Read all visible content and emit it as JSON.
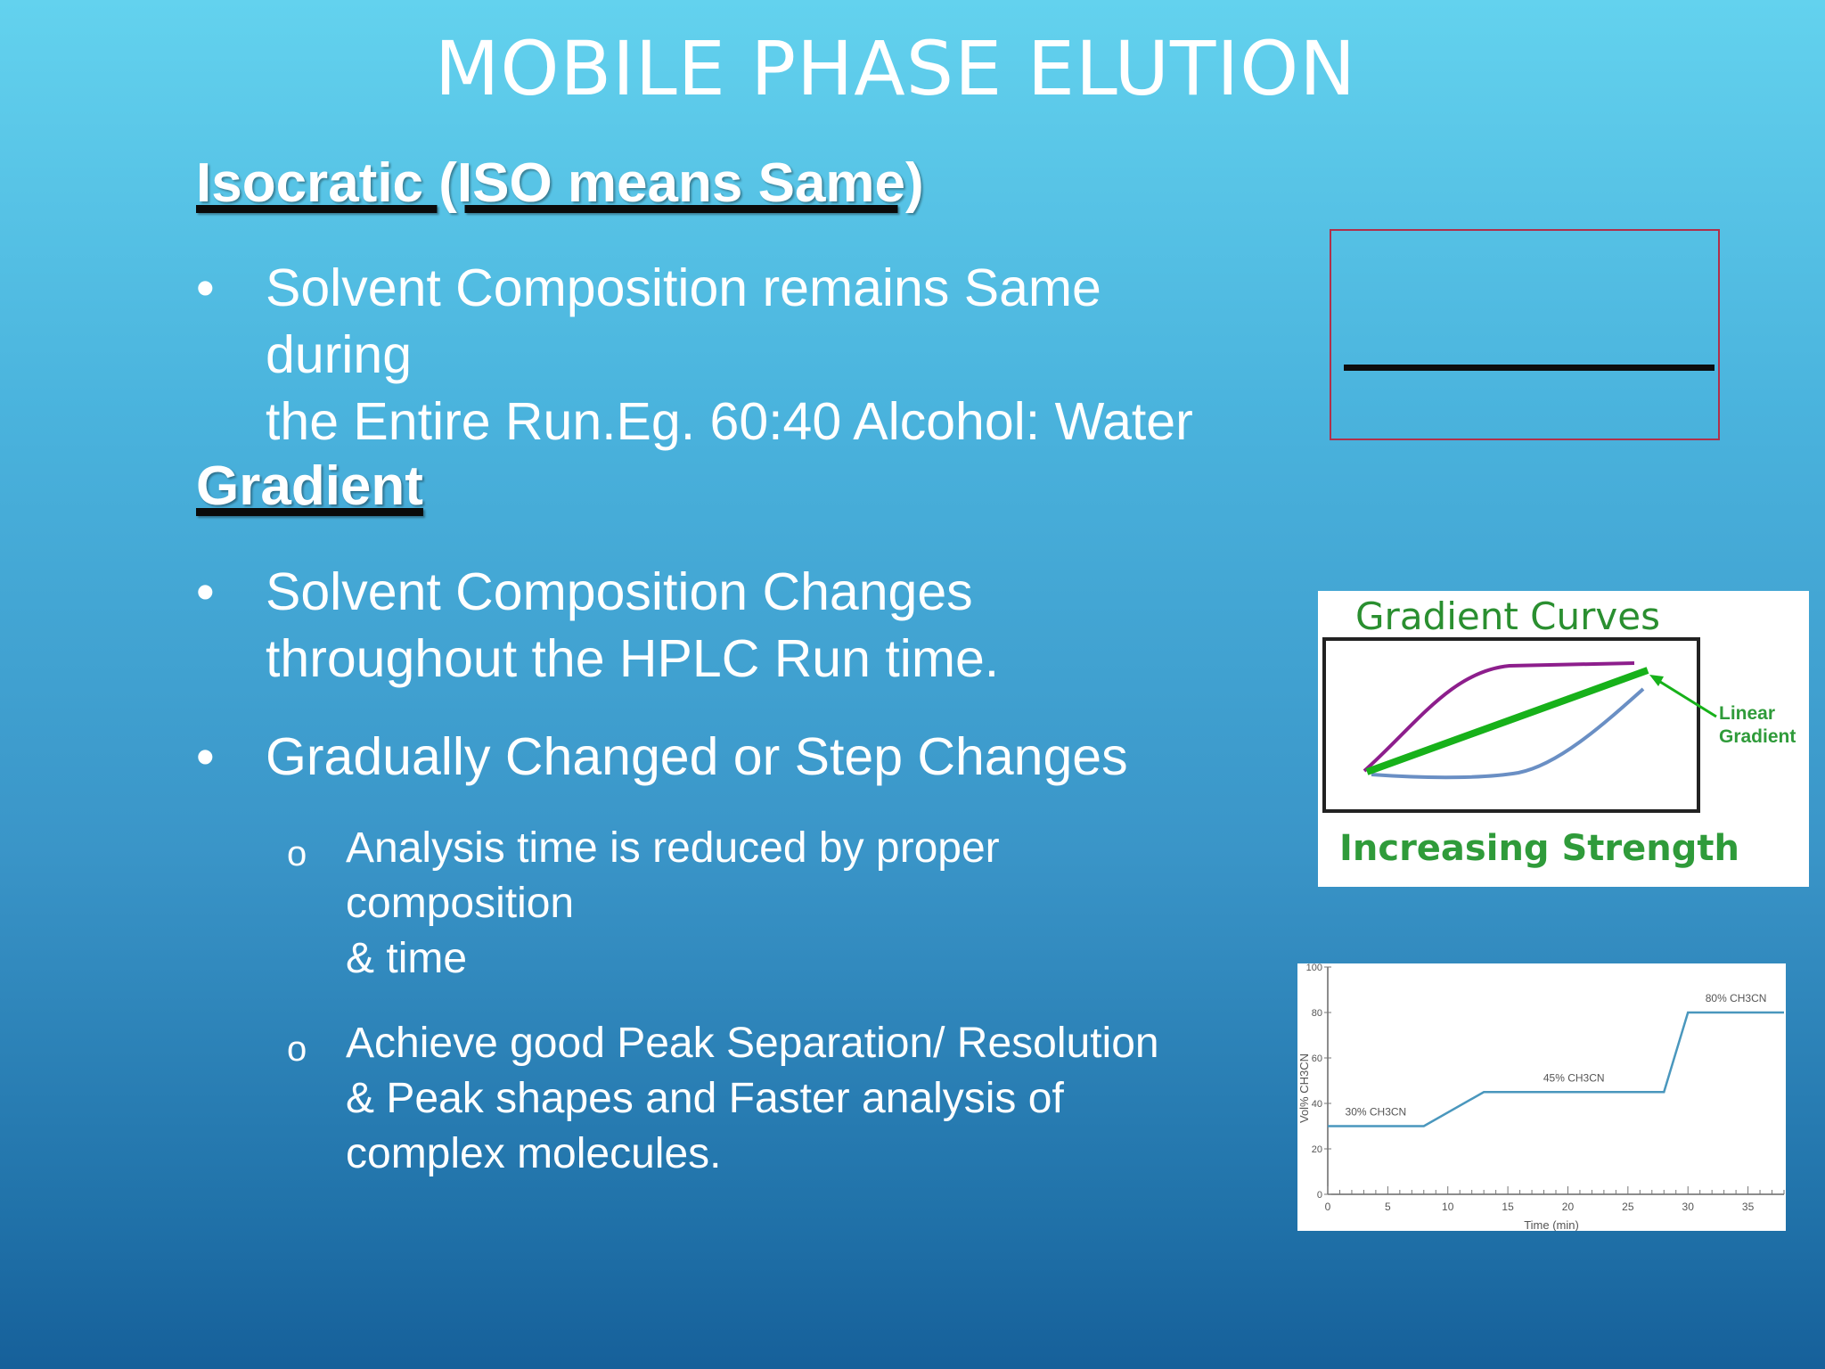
{
  "slide": {
    "title": "MOBILE PHASE ELUTION",
    "isocratic_heading": "Isocratic (ISO means Same)",
    "isocratic_bullet": {
      "mark": "•",
      "lines": [
        "Solvent Composition remains Same",
        "during",
        "the Entire Run.Eg. 60:40 Alcohol: Water"
      ]
    },
    "gradient_heading": "Gradient",
    "gradient_bullets": [
      {
        "mark": "•",
        "lines": [
          "Solvent Composition Changes",
          "throughout  the HPLC Run time."
        ]
      },
      {
        "mark": "•",
        "lines": [
          "Gradually Changed or Step Changes"
        ]
      }
    ],
    "sub_bullets": [
      {
        "mark": "o",
        "lines": [
          "Analysis time is reduced by proper",
          "composition",
          "& time"
        ]
      },
      {
        "mark": "o",
        "lines": [
          "Achieve good Peak Separation/ Resolution",
          "&  Peak shapes and Faster analysis of",
          "complex  molecules."
        ]
      }
    ]
  },
  "gradient_figure": {
    "title": "Gradient Curves",
    "arrow_label_line1": "Linear",
    "arrow_label_line2": "Gradient",
    "bottom_label": "Increasing Strength",
    "colors": {
      "title": "#2a8f30",
      "linear": "#17b11a",
      "convex": "#8d1e8c",
      "concave": "#6a8fc4",
      "label": "#2f9b3a"
    }
  },
  "step_figure": {
    "ylabel": "Vol% CH3CN",
    "xlabel": "Time (min)",
    "y_ticks": [
      "0",
      "20",
      "40",
      "60",
      "80",
      "100"
    ],
    "x_ticks": [
      "0",
      "5",
      "10",
      "15",
      "20",
      "25",
      "30",
      "35"
    ],
    "step_labels": [
      "30% CH3CN",
      "45% CH3CN",
      "80% CH3CN"
    ],
    "color": "#4a97bd"
  },
  "chart_data": {
    "type": "line",
    "title": "",
    "xlabel": "Time (min)",
    "ylabel": "Vol% CH3CN",
    "xlim": [
      0,
      38
    ],
    "ylim": [
      0,
      100
    ],
    "series": [
      {
        "x": [
          0,
          8,
          13,
          28,
          30,
          38
        ],
        "values": [
          30,
          30,
          45,
          45,
          80,
          80
        ]
      }
    ],
    "annotations": [
      "30% CH3CN",
      "45% CH3CN",
      "80% CH3CN"
    ]
  }
}
